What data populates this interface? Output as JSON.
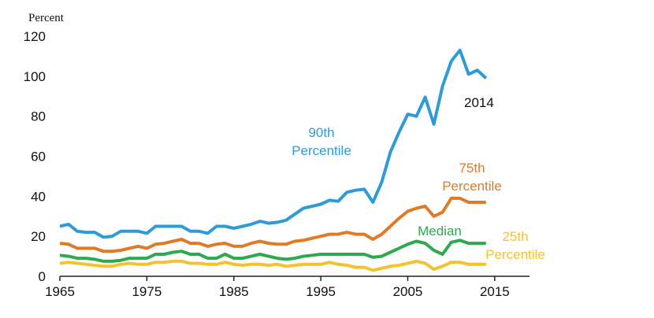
{
  "chart_data": {
    "type": "line",
    "ylabel": "Percent",
    "xlim": [
      1965,
      2019
    ],
    "ylim": [
      0,
      120
    ],
    "grid": false,
    "x_ticks": [
      "1965",
      "1975",
      "1985",
      "1995",
      "2005",
      "2015"
    ],
    "y_ticks": [
      "0",
      "20",
      "40",
      "60",
      "80",
      "100",
      "120"
    ],
    "x": [
      1965,
      1966,
      1967,
      1968,
      1969,
      1970,
      1971,
      1972,
      1973,
      1974,
      1975,
      1976,
      1977,
      1978,
      1979,
      1980,
      1981,
      1982,
      1983,
      1984,
      1985,
      1986,
      1987,
      1988,
      1989,
      1990,
      1991,
      1992,
      1993,
      1994,
      1995,
      1996,
      1997,
      1998,
      1999,
      2000,
      2001,
      2002,
      2003,
      2004,
      2005,
      2006,
      2007,
      2008,
      2009,
      2010,
      2011,
      2012,
      2013,
      2014
    ],
    "series": [
      {
        "name": "90th Percentile",
        "label_lines": [
          "90th",
          "Percentile"
        ],
        "color": "#2e9bd6",
        "values": [
          25,
          26,
          22.5,
          22,
          22,
          19.5,
          20,
          22.5,
          22.5,
          22.5,
          21.5,
          25,
          25,
          25,
          25,
          22.5,
          22.5,
          21.5,
          25,
          25,
          24,
          25,
          26,
          27.5,
          26.5,
          27,
          28,
          31,
          34,
          35,
          36,
          38,
          37.5,
          42,
          43,
          43.5,
          37,
          47,
          62,
          72,
          81,
          80,
          89.5,
          76,
          95,
          107.5,
          113,
          101,
          103,
          99
        ]
      },
      {
        "name": "75th Percentile",
        "label_lines": [
          "75th",
          "Percentile"
        ],
        "color": "#e07a26",
        "values": [
          16.5,
          16,
          14,
          14,
          14,
          12.5,
          12.5,
          13,
          14,
          15,
          14,
          16,
          16.5,
          17.5,
          18.5,
          16.5,
          16.5,
          15,
          16,
          16.5,
          15,
          15,
          16.5,
          17.5,
          16.5,
          16,
          16,
          17.5,
          18,
          19,
          20,
          21,
          21,
          22,
          21,
          21,
          18.5,
          21,
          25,
          29,
          32.5,
          34,
          35,
          30,
          32,
          39,
          39,
          37,
          37,
          37
        ]
      },
      {
        "name": "Median",
        "label_lines": [
          "Median"
        ],
        "color": "#2fa84f",
        "values": [
          10.5,
          10,
          9,
          9,
          8.5,
          7.5,
          7.5,
          8,
          9,
          9,
          9,
          11,
          11,
          12,
          12.5,
          11,
          11,
          9,
          9,
          11,
          9,
          9,
          10,
          11,
          10,
          9,
          8.5,
          9,
          10,
          10.5,
          11,
          11,
          11,
          11,
          11,
          11,
          9.5,
          10,
          12,
          14,
          16,
          17.5,
          16.5,
          13,
          11,
          17,
          18,
          16.5,
          16.5,
          16.5
        ]
      },
      {
        "name": "25th Percentile",
        "label_lines": [
          "25th",
          "Percentile"
        ],
        "color": "#f5c22e",
        "values": [
          6.5,
          7,
          6.5,
          6,
          5.5,
          5,
          5,
          6,
          6.5,
          6,
          6,
          7,
          7,
          7.5,
          7.5,
          6.5,
          6.5,
          6,
          6,
          7,
          6,
          5.5,
          6,
          6,
          5.5,
          6,
          5,
          5.5,
          6,
          6,
          6,
          7,
          6,
          5.5,
          4.5,
          4.5,
          3,
          4,
          5,
          5.5,
          6.5,
          7.5,
          6.5,
          3.5,
          5,
          7,
          7,
          6,
          6,
          6
        ]
      }
    ],
    "annotations": [
      {
        "text": "2014"
      }
    ]
  }
}
